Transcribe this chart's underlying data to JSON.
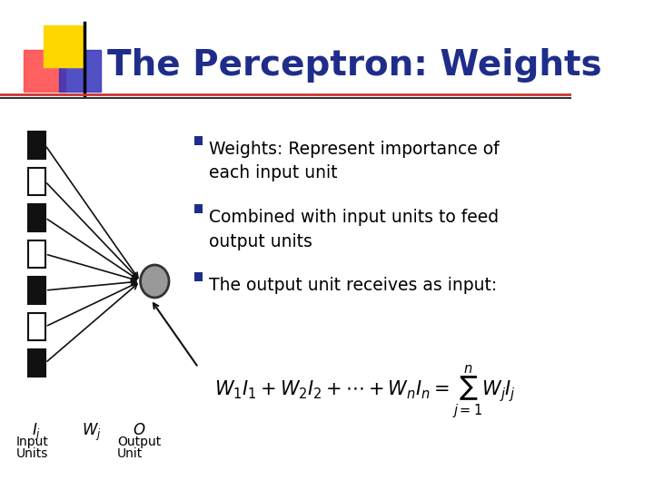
{
  "title": "The Perceptron: Weights",
  "title_color": "#1F2D8A",
  "title_fontsize": 28,
  "bg_color": "#FFFFFF",
  "header_line_color": "#333333",
  "bullet_color": "#1F2D8A",
  "bullet_points": [
    "Weights: Represent importance of\neach input unit",
    "Combined with input units to feed\noutput units",
    "The output unit receives as input:"
  ],
  "bullet_fontsize": 13.5,
  "bullet_square_color": "#1F2D8A",
  "node_color": "#999999",
  "node_edge_color": "#333333",
  "input_filled_color": "#111111",
  "input_empty_color": "#FFFFFF",
  "input_edge_color": "#111111",
  "arrow_color": "#111111",
  "formula_fontsize": 13,
  "label_fontsize": 12,
  "logo_yellow": "#FFD700",
  "logo_red": "#FF4444",
  "logo_blue": "#3333BB"
}
